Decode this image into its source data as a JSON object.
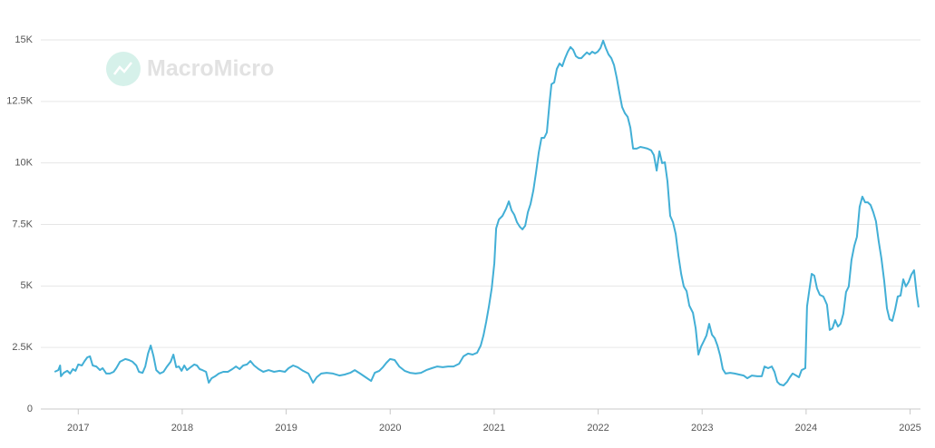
{
  "chart_data": {
    "type": "line",
    "watermark": "MacroMicro",
    "color": "#42afd6",
    "grid": true,
    "xlim": [
      2016.64,
      2025.1
    ],
    "xticks": [
      2017,
      2018,
      2019,
      2020,
      2021,
      2022,
      2023,
      2024,
      2025
    ],
    "ylim": [
      0,
      15000
    ],
    "yticks": [
      0,
      {
        "value": 2500,
        "label": "2.5K"
      },
      {
        "value": 5000,
        "label": "5K"
      },
      {
        "value": 7500,
        "label": "7.5K"
      },
      {
        "value": 10000,
        "label": "10K"
      },
      {
        "value": 12500,
        "label": "12.5K"
      },
      {
        "value": 15000,
        "label": "15K"
      }
    ],
    "x": [
      2016.773,
      2016.808,
      2016.826,
      2016.834,
      2016.861,
      2016.895,
      2016.922,
      2016.948,
      2016.974,
      2017.0,
      2017.035,
      2017.061,
      2017.087,
      2017.113,
      2017.139,
      2017.174,
      2017.209,
      2017.235,
      2017.27,
      2017.305,
      2017.34,
      2017.366,
      2017.401,
      2017.453,
      2017.488,
      2017.523,
      2017.558,
      2017.584,
      2017.619,
      2017.645,
      2017.671,
      2017.697,
      2017.724,
      2017.75,
      2017.785,
      2017.82,
      2017.854,
      2017.889,
      2017.915,
      2017.942,
      2017.968,
      2017.994,
      2018.02,
      2018.046,
      2018.081,
      2018.116,
      2018.142,
      2018.168,
      2018.194,
      2018.229,
      2018.255,
      2018.282,
      2018.316,
      2018.351,
      2018.395,
      2018.439,
      2018.482,
      2018.517,
      2018.552,
      2018.587,
      2018.622,
      2018.656,
      2018.691,
      2018.735,
      2018.779,
      2018.831,
      2018.883,
      2018.936,
      2018.988,
      2019.023,
      2019.066,
      2019.11,
      2019.162,
      2019.214,
      2019.258,
      2019.293,
      2019.337,
      2019.389,
      2019.45,
      2019.511,
      2019.563,
      2019.616,
      2019.659,
      2019.711,
      2019.764,
      2019.816,
      2019.851,
      2019.895,
      2019.93,
      2019.964,
      2019.999,
      2020.043,
      2020.087,
      2020.139,
      2020.191,
      2020.244,
      2020.296,
      2020.348,
      2020.4,
      2020.453,
      2020.505,
      2020.557,
      2020.609,
      2020.662,
      2020.705,
      2020.749,
      2020.793,
      2020.836,
      2020.871,
      2020.897,
      2020.923,
      2020.949,
      2020.976,
      2021.002,
      2021.019,
      2021.045,
      2021.08,
      2021.115,
      2021.141,
      2021.167,
      2021.194,
      2021.22,
      2021.246,
      2021.272,
      2021.298,
      2021.324,
      2021.35,
      2021.377,
      2021.403,
      2021.429,
      2021.455,
      2021.481,
      2021.507,
      2021.534,
      2021.551,
      2021.577,
      2021.603,
      2021.629,
      2021.655,
      2021.682,
      2021.708,
      2021.734,
      2021.76,
      2021.786,
      2021.813,
      2021.839,
      2021.865,
      2021.891,
      2021.917,
      2021.943,
      2021.97,
      2021.996,
      2022.022,
      2022.048,
      2022.074,
      2022.1,
      2022.127,
      2022.153,
      2022.179,
      2022.205,
      2022.231,
      2022.258,
      2022.284,
      2022.31,
      2022.336,
      2022.371,
      2022.406,
      2022.44,
      2022.475,
      2022.51,
      2022.536,
      2022.563,
      2022.589,
      2022.615,
      2022.641,
      2022.667,
      2022.693,
      2022.72,
      2022.746,
      2022.772,
      2022.798,
      2022.824,
      2022.851,
      2022.877,
      2022.912,
      2022.938,
      2022.964,
      2022.99,
      2023.016,
      2023.042,
      2023.068,
      2023.095,
      2023.121,
      2023.147,
      2023.173,
      2023.199,
      2023.225,
      2023.269,
      2023.313,
      2023.356,
      2023.399,
      2023.434,
      2023.478,
      2023.53,
      2023.574,
      2023.6,
      2023.635,
      2023.67,
      2023.696,
      2023.722,
      2023.748,
      2023.783,
      2023.818,
      2023.844,
      2023.87,
      2023.905,
      2023.931,
      2023.957,
      2023.992,
      2024.009,
      2024.027,
      2024.053,
      2024.079,
      2024.105,
      2024.132,
      2024.166,
      2024.201,
      2024.227,
      2024.253,
      2024.279,
      2024.306,
      2024.332,
      2024.358,
      2024.384,
      2024.41,
      2024.436,
      2024.463,
      2024.489,
      2024.515,
      2024.541,
      2024.567,
      2024.593,
      2024.62,
      2024.646,
      2024.672,
      2024.698,
      2024.724,
      2024.751,
      2024.777,
      2024.803,
      2024.829,
      2024.855,
      2024.881,
      2024.908,
      2024.934,
      2024.96,
      2024.986,
      2025.012,
      2025.038,
      2025.064,
      2025.082
    ],
    "values": [
      1510,
      1580,
      1770,
      1330,
      1470,
      1550,
      1440,
      1620,
      1550,
      1810,
      1770,
      1950,
      2100,
      2140,
      1770,
      1730,
      1580,
      1660,
      1440,
      1440,
      1510,
      1660,
      1920,
      2030,
      1990,
      1920,
      1770,
      1510,
      1470,
      1730,
      2250,
      2580,
      2140,
      1580,
      1440,
      1510,
      1730,
      1920,
      2210,
      1700,
      1730,
      1550,
      1770,
      1580,
      1700,
      1810,
      1770,
      1620,
      1580,
      1510,
      1070,
      1250,
      1330,
      1440,
      1510,
      1510,
      1620,
      1730,
      1620,
      1770,
      1810,
      1950,
      1770,
      1620,
      1510,
      1580,
      1510,
      1550,
      1510,
      1660,
      1770,
      1700,
      1550,
      1440,
      1070,
      1290,
      1440,
      1470,
      1440,
      1360,
      1400,
      1470,
      1580,
      1440,
      1290,
      1140,
      1470,
      1550,
      1700,
      1880,
      2030,
      1990,
      1730,
      1550,
      1470,
      1440,
      1470,
      1580,
      1660,
      1730,
      1700,
      1730,
      1730,
      1840,
      2140,
      2250,
      2210,
      2290,
      2580,
      2990,
      3540,
      4170,
      4900,
      5930,
      7340,
      7700,
      7850,
      8150,
      8440,
      8070,
      7890,
      7590,
      7410,
      7300,
      7450,
      8000,
      8330,
      8880,
      9620,
      10430,
      11020,
      11020,
      11240,
      12500,
      13200,
      13270,
      13820,
      14040,
      13930,
      14260,
      14520,
      14710,
      14600,
      14340,
      14260,
      14260,
      14380,
      14490,
      14410,
      14520,
      14450,
      14520,
      14670,
      14970,
      14670,
      14410,
      14260,
      13970,
      13450,
      12830,
      12270,
      12020,
      11870,
      11430,
      10580,
      10580,
      10650,
      10620,
      10580,
      10510,
      10320,
      9690,
      10470,
      9990,
      10030,
      9250,
      7850,
      7590,
      7110,
      6230,
      5490,
      4980,
      4790,
      4200,
      3910,
      3280,
      2210,
      2540,
      2760,
      2990,
      3460,
      3020,
      2880,
      2580,
      2170,
      1620,
      1440,
      1470,
      1440,
      1400,
      1360,
      1250,
      1360,
      1330,
      1330,
      1730,
      1660,
      1730,
      1510,
      1110,
      1000,
      960,
      1110,
      1290,
      1440,
      1360,
      1290,
      1580,
      1660,
      4170,
      4720,
      5490,
      5420,
      4900,
      4640,
      4570,
      4240,
      3210,
      3280,
      3610,
      3350,
      3460,
      3870,
      4750,
      4980,
      6050,
      6630,
      7000,
      8220,
      8630,
      8400,
      8400,
      8290,
      8000,
      7630,
      6820,
      6120,
      5200,
      4090,
      3650,
      3580,
      4020,
      4570,
      4610,
      5270,
      4980,
      5160,
      5460,
      5640,
      4640,
      4130
    ]
  }
}
